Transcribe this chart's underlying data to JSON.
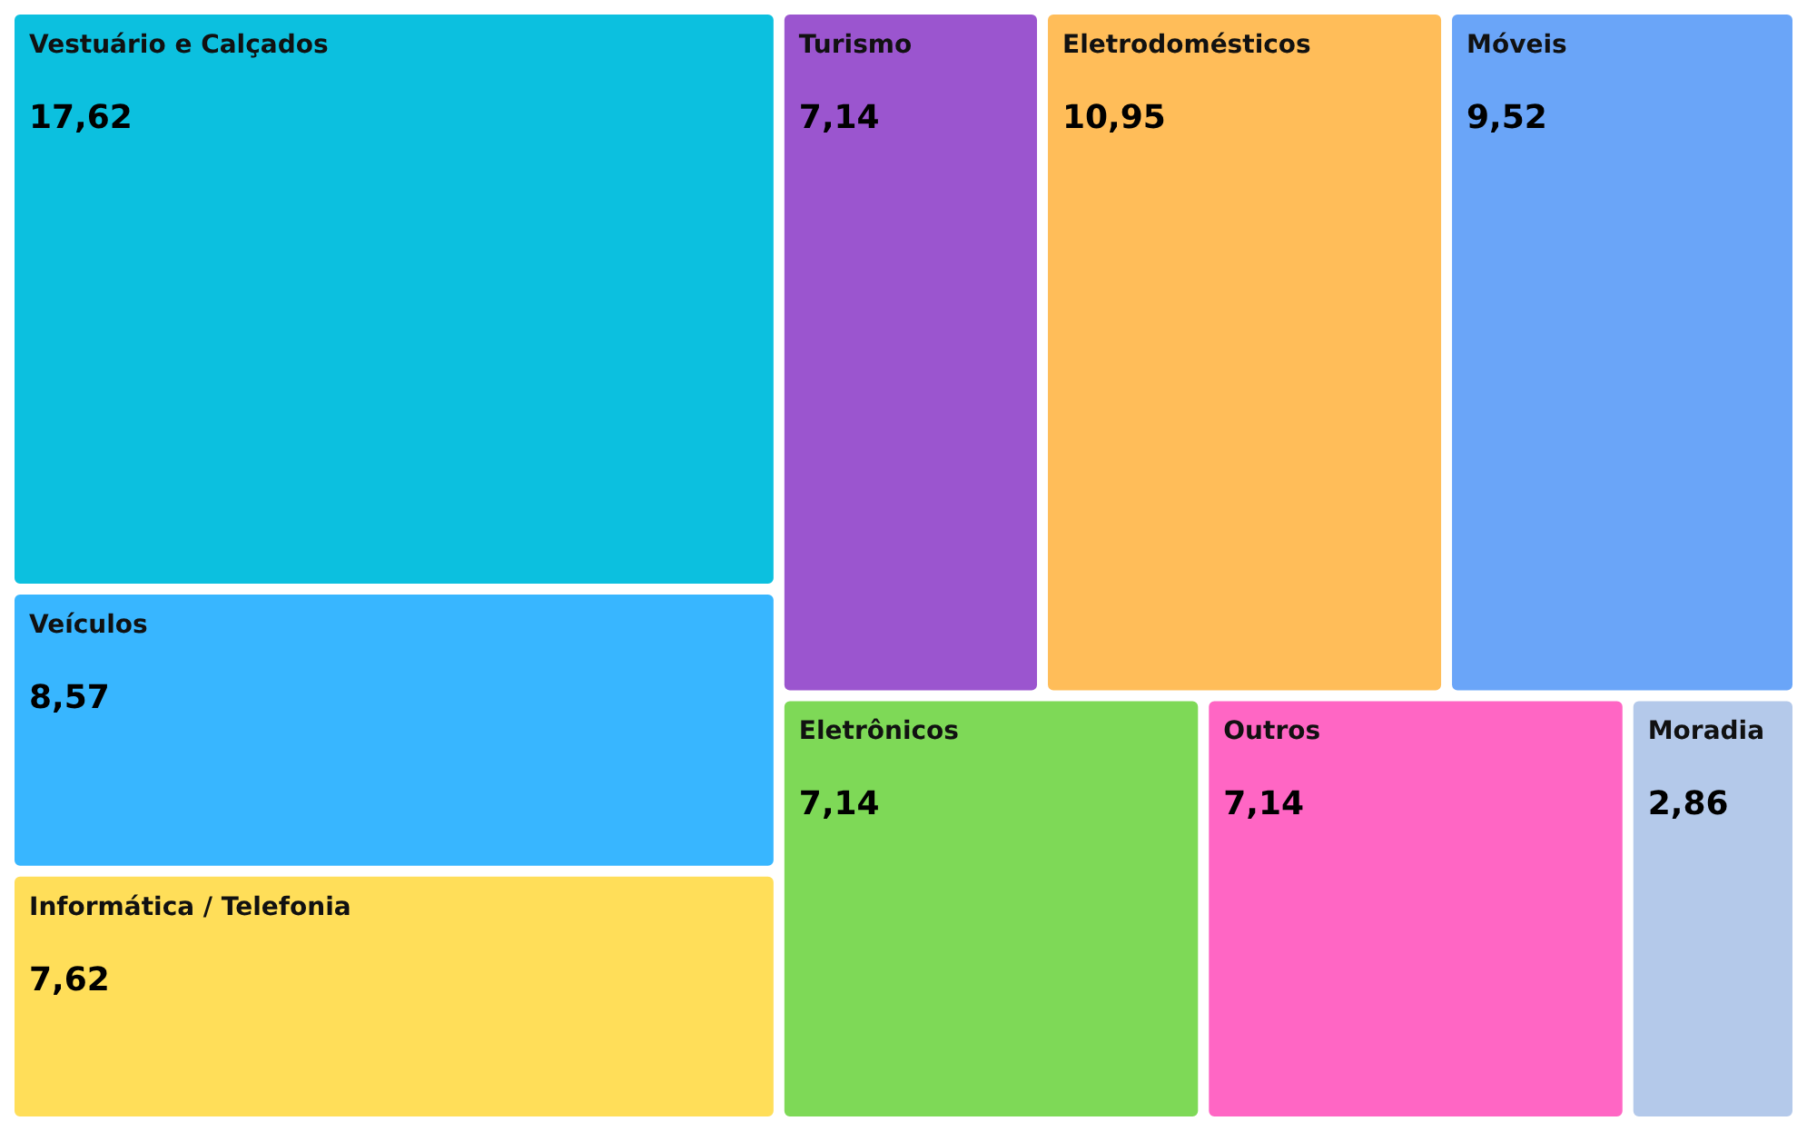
{
  "chart_data": {
    "type": "other",
    "categories": [
      "Vestuário e Calçados",
      "Veículos",
      "Informática / Telefonia",
      "Turismo",
      "Eletrodomésticos",
      "Móveis",
      "Eletrônicos",
      "Outros",
      "Moradia"
    ],
    "values": [
      17.62,
      8.57,
      7.62,
      7.14,
      10.95,
      9.52,
      7.14,
      7.14,
      2.86
    ],
    "value_labels": [
      "17,62",
      "8,57",
      "7,62",
      "7,14",
      "10,95",
      "9,52",
      "7,14",
      "7,14",
      "2,86"
    ],
    "colors": [
      "#0cc0df",
      "#38b6ff",
      "#ffde59",
      "#9b55cf",
      "#ffbd59",
      "#6aa5f8",
      "#7ed957",
      "#ff66c4",
      "#b4c9ea"
    ]
  }
}
